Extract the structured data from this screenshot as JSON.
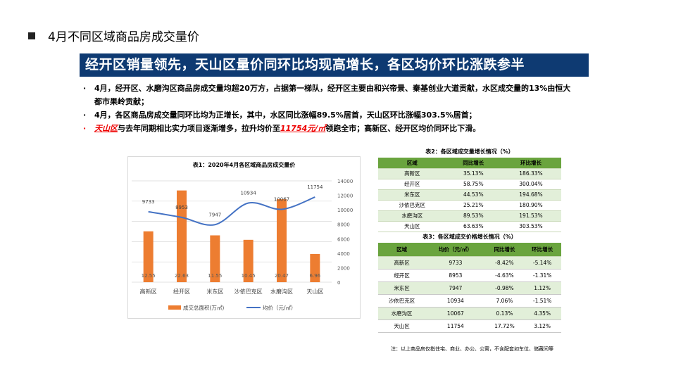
{
  "title": "4月不同区域商品房成交量价",
  "banner": "经开区销量领先，天山区量价同环比均现高增长，各区均价环比涨跌参半",
  "bullets": {
    "b1": "4月，经开区、水磨沟区商品房成交量均超20万方，占据第一梯队，经开区主要由和兴帝景、秦基创业大道贡献，水区成交量的13%由恒大都市果岭贡献；",
    "b2": "4月，各区商品房成交量同环比均为正增长，其中，水区同比涨幅89.5%居首，天山区环比涨幅303.5%居首；",
    "b3_red1": "天山区",
    "b3_mid": "与去年同期相比实力项目逐渐增多，拉升均价至",
    "b3_red2": "11754元/㎡",
    "b3_end": "领跑全市；高新区、经开区均价同环比下滑。"
  },
  "colors": {
    "banner": "#0e3a72",
    "bar": "#ed7d31",
    "line": "#4472c4",
    "table_header": "#6aa43e",
    "table_alt": "#e2efd9",
    "highlight": "#e00000"
  },
  "chart_data": {
    "type": "bar+line",
    "title": "表1：2020年4月各区域商品房成交量价",
    "categories": [
      "高新区",
      "经开区",
      "米东区",
      "沙依巴克区",
      "水磨沟区",
      "天山区"
    ],
    "series": [
      {
        "name": "成交总面积(万㎡)",
        "type": "bar",
        "axis": "left",
        "values": [
          12.55,
          22.63,
          11.55,
          10.45,
          20.47,
          6.96
        ]
      },
      {
        "name": "均价（元/㎡）",
        "type": "line",
        "axis": "right",
        "values": [
          9733,
          8953,
          7947,
          10934,
          10067,
          11754
        ]
      }
    ],
    "yleft": {
      "range": [
        0,
        25
      ],
      "ticks": [
        "0.00",
        "5.00",
        "10.00",
        "15.00",
        "20.00",
        "25.00"
      ]
    },
    "yright": {
      "range": [
        0,
        14000
      ],
      "ticks": [
        "0",
        "2000",
        "4000",
        "6000",
        "8000",
        "10000",
        "12000",
        "14000"
      ]
    },
    "grid": true,
    "legend": "bottom"
  },
  "table2": {
    "title": "表2：各区域成交量增长情况（%）",
    "headers": [
      "区域",
      "同比增长",
      "环比增长"
    ],
    "rows": [
      [
        "高新区",
        "35.13%",
        "186.33%"
      ],
      [
        "经开区",
        "58.75%",
        "300.04%"
      ],
      [
        "米东区",
        "44.53%",
        "194.68%"
      ],
      [
        "沙依巴克区",
        "25.21%",
        "180.90%"
      ],
      [
        "水磨沟区",
        "89.53%",
        "191.53%"
      ],
      [
        "天山区",
        "63.63%",
        "303.53%"
      ]
    ]
  },
  "table3": {
    "title": "表3：各区域成交价格增长情况（%）",
    "headers": [
      "区域",
      "均价（元/㎡）",
      "同比增长",
      "环比增长"
    ],
    "rows": [
      [
        "高新区",
        "9733",
        "-8.42%",
        "-5.14%"
      ],
      [
        "经开区",
        "8953",
        "-4.63%",
        "-1.31%"
      ],
      [
        "米东区",
        "7947",
        "-0.98%",
        "1.12%"
      ],
      [
        "沙依巴克区",
        "10934",
        "7.06%",
        "-1.51%"
      ],
      [
        "水磨沟区",
        "10067",
        "0.13%",
        "4.35%"
      ],
      [
        "天山区",
        "11754",
        "17.72%",
        "3.12%"
      ]
    ]
  },
  "note": "注：以上商品房仅指住宅、商业、办公、公寓，不含配套如车位、储藏间等"
}
